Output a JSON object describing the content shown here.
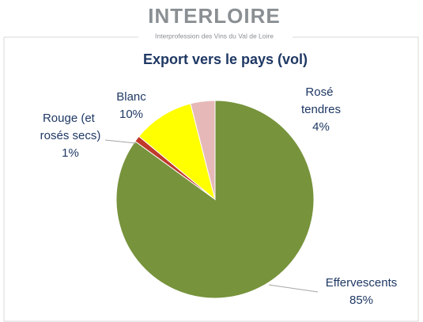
{
  "logo": {
    "name": "INTERLOIRE",
    "tagline": "Interprofession des Vins du Val de Loire"
  },
  "chart_data": {
    "type": "pie",
    "title": "Export vers le pays (vol)",
    "categories": [
      "Effervescents",
      "Rouge (et rosés secs)",
      "Blanc",
      "Rosé tendres"
    ],
    "values": [
      85,
      1,
      10,
      4
    ],
    "value_labels": [
      "85%",
      "1%",
      "10%",
      "4%"
    ],
    "colors": [
      "#77933c",
      "#c0392b",
      "#ffff00",
      "#e6b9b8"
    ]
  }
}
